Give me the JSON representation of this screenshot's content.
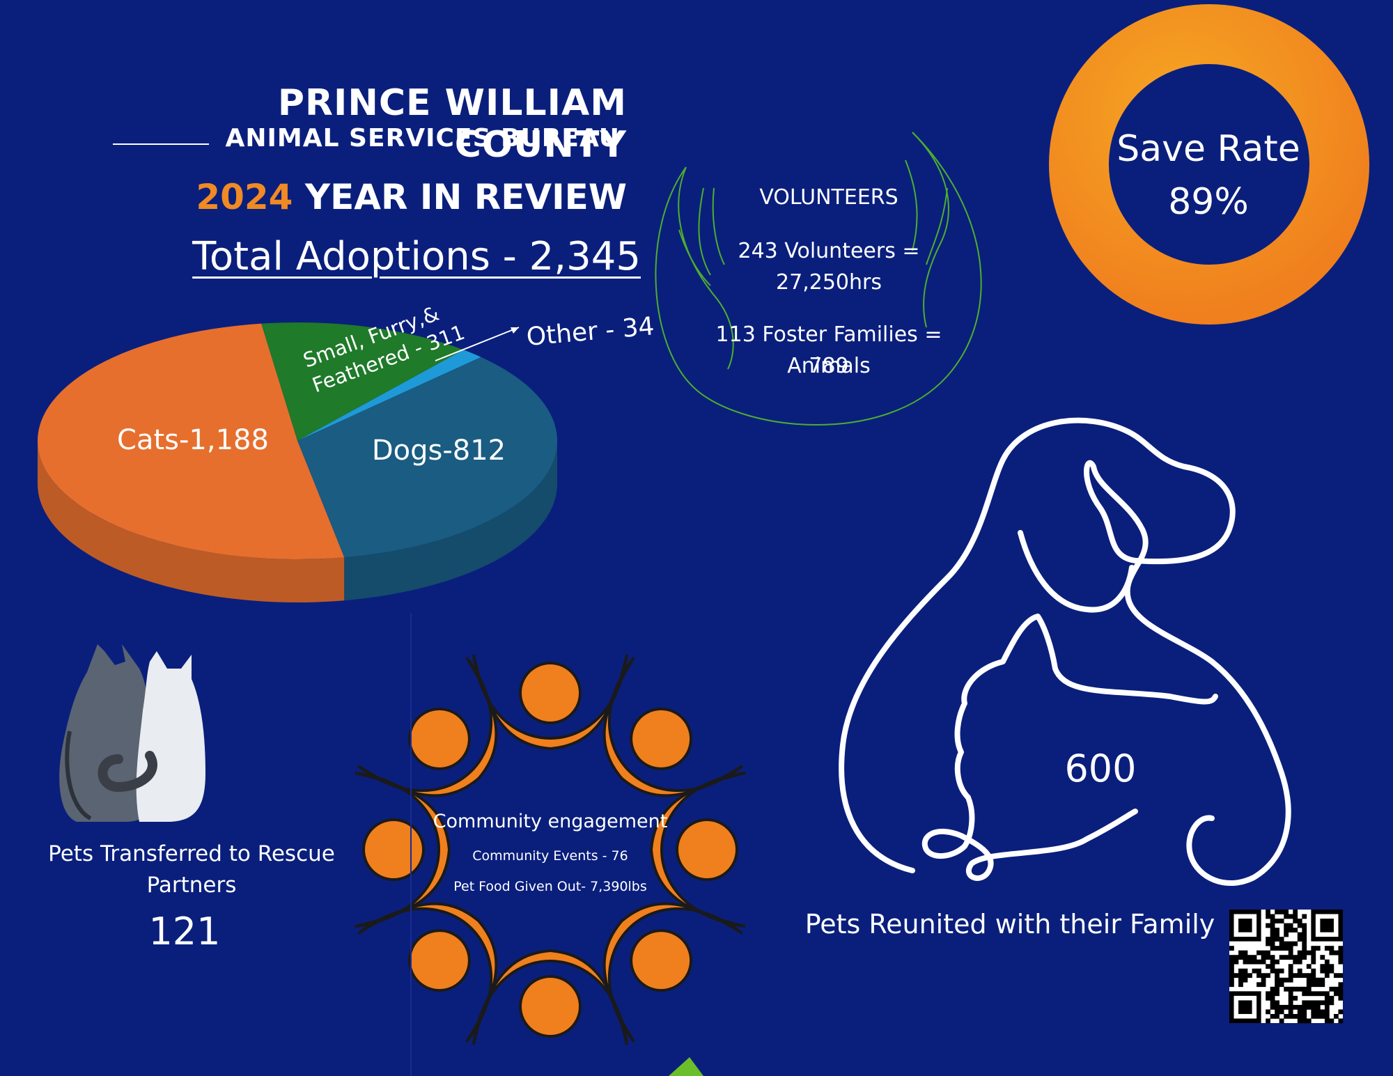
{
  "header": {
    "org_line1": "PRINCE WILLIAM COUNTY",
    "org_line2": "ANIMAL SERVICES BUREAU",
    "year": "2024",
    "review_text": "YEAR IN REVIEW"
  },
  "adoptions": {
    "total_label": "Total Adoptions - 2,345"
  },
  "chart_data": {
    "type": "pie",
    "title": "Total Adoptions - 2,345",
    "categories": [
      "Cats",
      "Dogs",
      "Small, Furry,& Feathered",
      "Other"
    ],
    "values": [
      1188,
      812,
      311,
      34
    ],
    "labels": [
      "Cats-1,188",
      "Dogs-812",
      "Small, Furry,&",
      "Feathered - 311",
      "Other - 34"
    ],
    "colors": [
      "#e66f2e",
      "#1a5c82",
      "#1f7a2a",
      "#1f9ad8"
    ]
  },
  "volunteers": {
    "title": "VOLUNTEERS",
    "line1": "243 Volunteers =",
    "line2": "27,250hrs",
    "line3": "113 Foster Families = 789",
    "line4": "Animals"
  },
  "save_rate": {
    "label": "Save Rate",
    "value_text": "89%",
    "value": 89,
    "ring_color": "#f07f1e"
  },
  "transfers": {
    "label_line1": "Pets Transferred to Rescue",
    "label_line2": "Partners",
    "value": "121"
  },
  "community": {
    "title": "Community engagement",
    "events": "Community Events - 76",
    "food": "Pet Food Given Out- 7,390lbs",
    "color": "#f07f1e"
  },
  "reunited": {
    "value": "600",
    "label": "Pets Reunited with their Family"
  },
  "icons": {
    "hands": "hands-icon",
    "cats": "cats-illustration-icon",
    "people_ring": "people-circle-icon",
    "dog_cat_outline": "dog-cat-outline-icon",
    "qr": "qr-code-icon"
  }
}
